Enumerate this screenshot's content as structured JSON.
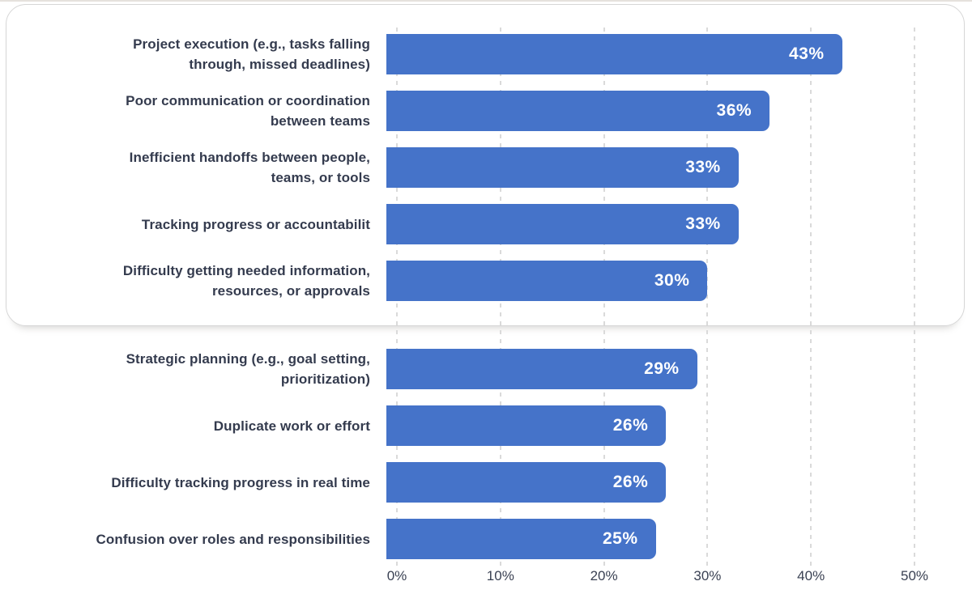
{
  "chart_data": {
    "type": "bar",
    "orientation": "horizontal",
    "title": "",
    "xlabel": "",
    "ylabel": "",
    "xlim": [
      0,
      50
    ],
    "grid": "vertical-dashed",
    "legend": null,
    "categories": [
      "Project execution (e.g., tasks falling through, missed deadlines)",
      "Poor communication or coordination between teams",
      "Inefficient handoffs between people, teams, or tools",
      "Tracking progress or accountabilit",
      "Difficulty getting needed information, resources, or approvals",
      "Strategic planning (e.g., goal setting, prioritization)",
      "Duplicate work or effort",
      "Difficulty tracking progress in real time",
      "Confusion over roles and responsibilities"
    ],
    "category_lines": [
      [
        "Project execution (e.g., tasks falling",
        "through, missed deadlines)"
      ],
      [
        "Poor communication or coordination",
        "between teams"
      ],
      [
        "Inefficient handoffs between people,",
        "teams, or tools"
      ],
      [
        "Tracking progress or accountabilit"
      ],
      [
        "Difficulty getting needed information,",
        "resources, or approvals"
      ],
      [
        "Strategic planning (e.g., goal setting,",
        "prioritization)"
      ],
      [
        "Duplicate work or effort"
      ],
      [
        "Difficulty tracking progress in real time"
      ],
      [
        "Confusion over roles and responsibilities"
      ]
    ],
    "values": [
      43,
      36,
      33,
      33,
      30,
      29,
      26,
      26,
      25
    ],
    "value_labels": [
      "43%",
      "36%",
      "33%",
      "33%",
      "30%",
      "29%",
      "26%",
      "26%",
      "25%"
    ],
    "x_ticks": [
      {
        "value": 0,
        "label": "0%"
      },
      {
        "value": 10,
        "label": "10%"
      },
      {
        "value": 20,
        "label": "20%"
      },
      {
        "value": 30,
        "label": "30%"
      },
      {
        "value": 40,
        "label": "40%"
      },
      {
        "value": 50,
        "label": "50%"
      }
    ],
    "highlight_box_rows": [
      0,
      1,
      2,
      3,
      4
    ]
  },
  "colors": {
    "bar": "#4573c9",
    "bar_value_text": "#ffffff",
    "category_text": "#343b4e",
    "axis_text": "#3a4153",
    "gridline": "#dadada",
    "box_border": "#d6d6d6",
    "background": "#ffffff"
  }
}
